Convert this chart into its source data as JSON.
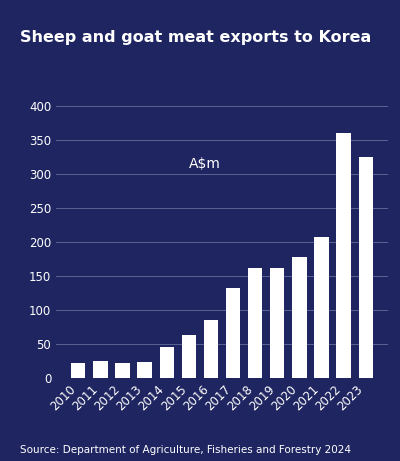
{
  "title": "Sheep and goat meat exports to Korea",
  "annotation": "A$m",
  "source": "Source: Department of Agriculture, Fisheries and Forestry 2024",
  "years": [
    2010,
    2011,
    2012,
    2013,
    2014,
    2015,
    2016,
    2017,
    2018,
    2019,
    2020,
    2021,
    2022,
    2023
  ],
  "values": [
    22,
    25,
    22,
    24,
    45,
    63,
    85,
    133,
    162,
    162,
    178,
    207,
    360,
    325
  ],
  "bar_color": "#ffffff",
  "background_color": "#1e2560",
  "text_color": "#ffffff",
  "grid_color": "#5a6490",
  "ylim": [
    0,
    420
  ],
  "yticks": [
    0,
    50,
    100,
    150,
    200,
    250,
    300,
    350,
    400
  ],
  "title_fontsize": 11.5,
  "tick_fontsize": 8.5,
  "annotation_fontsize": 10,
  "source_fontsize": 7.5
}
